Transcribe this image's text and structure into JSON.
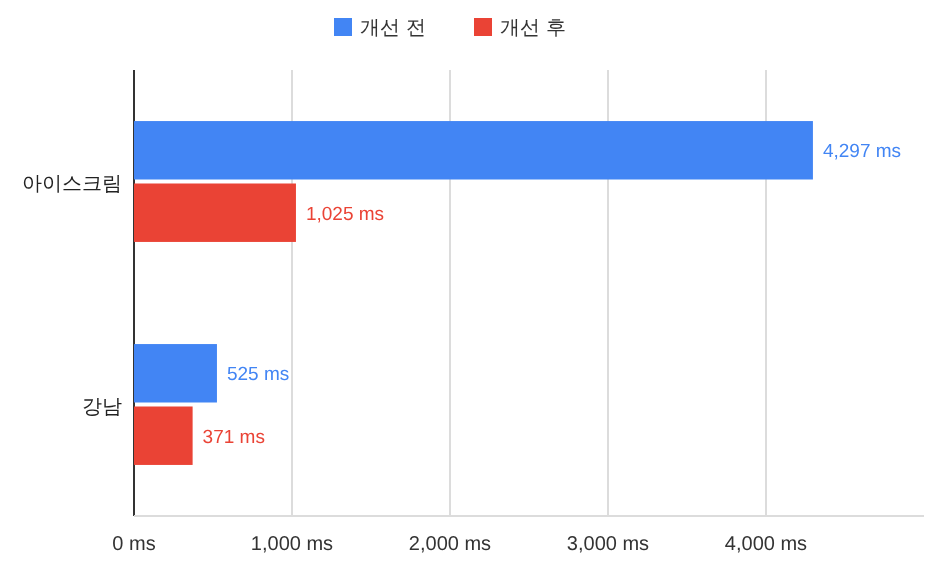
{
  "chart_data": {
    "type": "bar",
    "orientation": "horizontal",
    "categories": [
      "아이스크림",
      "강남"
    ],
    "series": [
      {
        "name": "개선 전",
        "color": "#4285f4",
        "values": [
          4297,
          525
        ],
        "value_labels": [
          "4,297 ms",
          "525 ms"
        ]
      },
      {
        "name": "개선 후",
        "color": "#ea4335",
        "values": [
          1025,
          371
        ],
        "value_labels": [
          "1,025 ms",
          "371 ms"
        ]
      }
    ],
    "xlim": [
      0,
      5000
    ],
    "xticks": [
      {
        "value": 0,
        "label": "0 ms"
      },
      {
        "value": 1000,
        "label": "1,000 ms"
      },
      {
        "value": 2000,
        "label": "2,000 ms"
      },
      {
        "value": 3000,
        "label": "3,000 ms"
      },
      {
        "value": 4000,
        "label": "4,000 ms"
      }
    ],
    "grid": "x",
    "legend": "top"
  }
}
